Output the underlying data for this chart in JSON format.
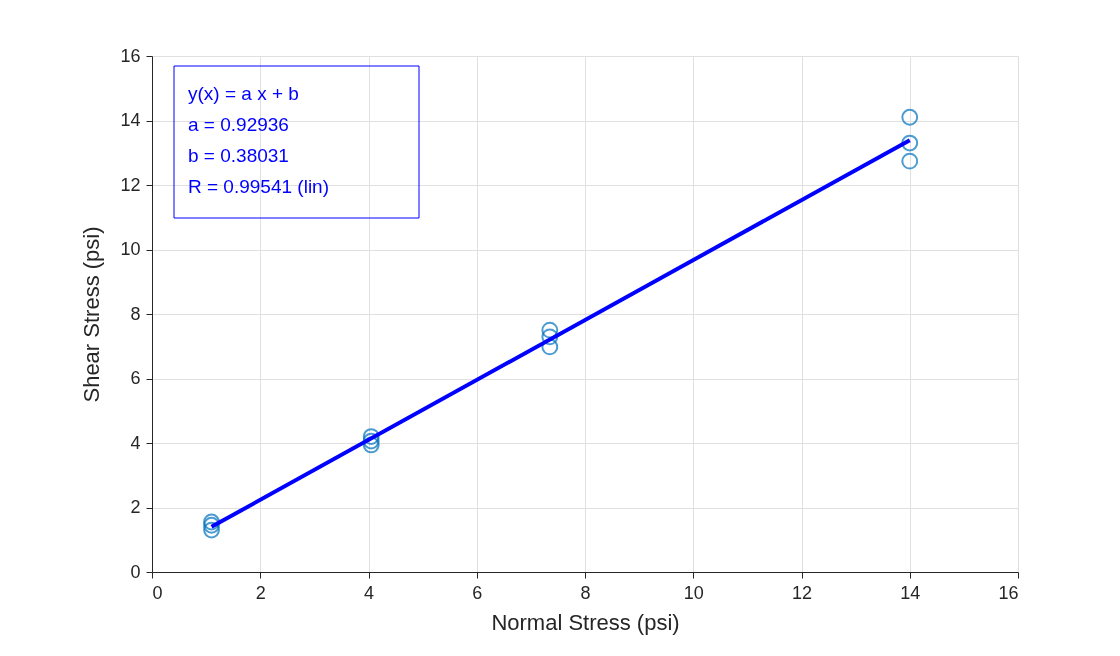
{
  "chart_data": {
    "type": "scatter",
    "xlabel": "Normal Stress (psi)",
    "ylabel": "Shear Stress (psi)",
    "xlim": [
      0,
      16
    ],
    "xticks": [
      0,
      2,
      4,
      6,
      8,
      10,
      12,
      14,
      16
    ],
    "ylim": [
      0,
      16
    ],
    "yticks": [
      0,
      2,
      4,
      6,
      8,
      10,
      12,
      14,
      16
    ],
    "grid": true,
    "series": [
      {
        "marker": "circle",
        "color": "#0072bd",
        "x": [
          1.1,
          1.1,
          1.1,
          4.05,
          4.05,
          4.05,
          7.35,
          7.35,
          7.35,
          14,
          14,
          14
        ],
        "values": [
          1.3,
          1.45,
          1.55,
          3.94,
          4.06,
          4.2,
          6.98,
          7.29,
          7.5,
          12.74,
          13.3,
          14.1
        ]
      },
      {
        "type": "line",
        "marker": "none",
        "color": "#0000ff",
        "x": [
          1.1,
          14
        ],
        "values": [
          1.4,
          13.39
        ]
      }
    ],
    "annotations": [
      "y(x) = a x + b",
      "a = 0.92936",
      "b = 0.38031",
      "R = 0.99541  (lin)"
    ]
  }
}
